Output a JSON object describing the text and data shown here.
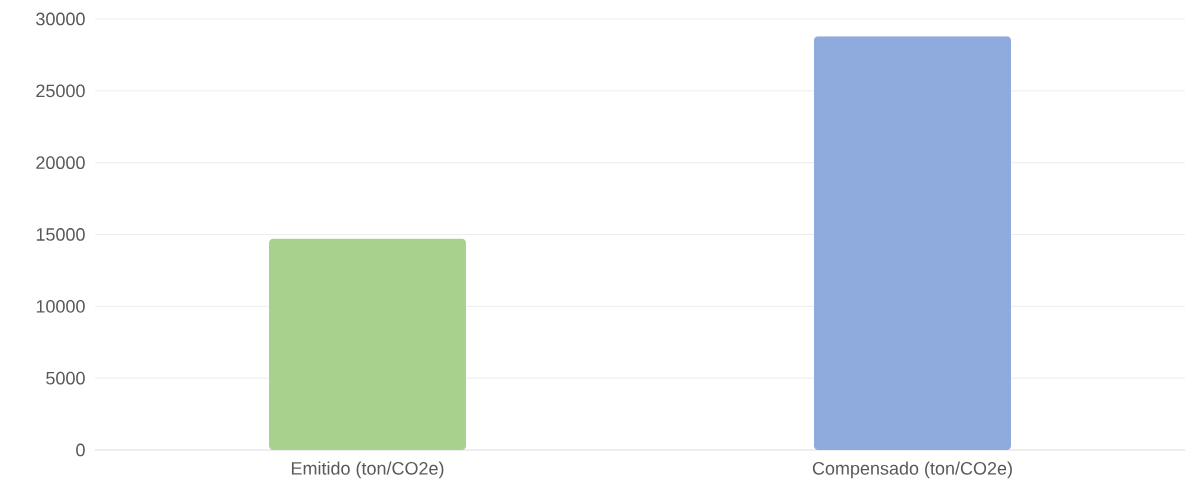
{
  "chart_data": {
    "type": "bar",
    "categories": [
      "Emitido (ton/CO2e)",
      "Compensado (ton/CO2e)"
    ],
    "values": [
      14700,
      28800
    ],
    "colors": [
      "#a9d18e",
      "#8faadc"
    ],
    "ylim": [
      0,
      30000
    ],
    "yticks": [
      0,
      5000,
      10000,
      15000,
      20000,
      25000,
      30000
    ],
    "grid": "y"
  }
}
